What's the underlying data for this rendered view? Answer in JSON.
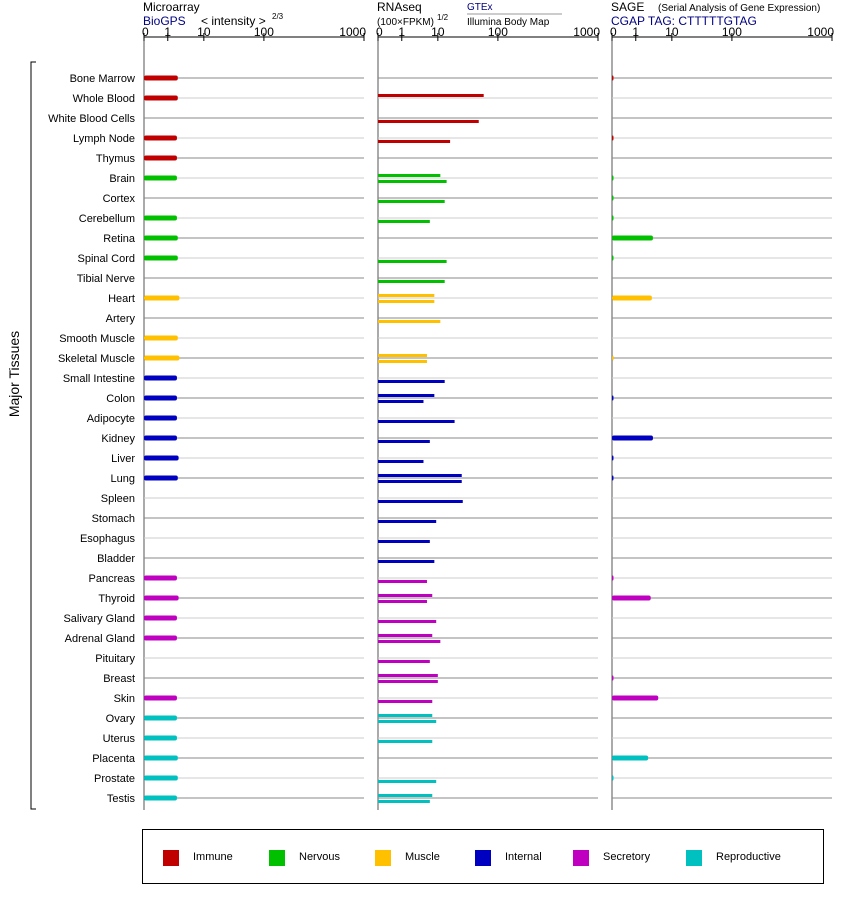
{
  "panels": {
    "microarray": {
      "title": "Microarray",
      "source": "BioGPS",
      "metric": "< intensity >",
      "exponent": "2/3",
      "ticks": [
        "0",
        "1",
        "10",
        "100",
        "1000"
      ]
    },
    "rnaseq": {
      "title": "RNAseq",
      "metric": "(100×FPKM)",
      "exponent": "1/2",
      "source_top": "GTEx",
      "source_bottom": "Illumina Body Map",
      "ticks": [
        "0",
        "1",
        "10",
        "100",
        "1000"
      ]
    },
    "sage": {
      "title": "SAGE",
      "subtitle": "(Serial Analysis of Gene Expression)",
      "tag": "CGAP TAG: CTTTTTGTAG",
      "ticks": [
        "0",
        "1",
        "10",
        "100",
        "1000"
      ]
    }
  },
  "y_axis_label": "Major Tissues",
  "colors": {
    "Immune": "#c00000",
    "Nervous": "#00c000",
    "Muscle": "#ffc000",
    "Internal": "#0000c0",
    "Secretory": "#c000c0",
    "Reproductive": "#00c0c0",
    "title_blue": "#000080"
  },
  "legend": [
    "Immune",
    "Nervous",
    "Muscle",
    "Internal",
    "Secretory",
    "Reproductive"
  ],
  "chart_data": [
    {
      "type": "bar",
      "title": "Microarray",
      "scale": "log-like (0, 1, 10, 100, 1000)",
      "xlim": [
        0,
        1000
      ],
      "categories": [
        "Bone Marrow",
        "Whole Blood",
        "White Blood Cells",
        "Lymph Node",
        "Thymus",
        "Brain",
        "Cortex",
        "Cerebellum",
        "Retina",
        "Spinal Cord",
        "Tibial Nerve",
        "Heart",
        "Artery",
        "Smooth Muscle",
        "Skeletal Muscle",
        "Small Intestine",
        "Colon",
        "Adipocyte",
        "Kidney",
        "Liver",
        "Lung",
        "Spleen",
        "Stomach",
        "Esophagus",
        "Bladder",
        "Pancreas",
        "Thyroid",
        "Salivary Gland",
        "Adrenal Gland",
        "Pituitary",
        "Breast",
        "Skin",
        "Ovary",
        "Uterus",
        "Placenta",
        "Prostate",
        "Testis"
      ],
      "groups": [
        "Immune",
        "Immune",
        "Immune",
        "Immune",
        "Immune",
        "Nervous",
        "Nervous",
        "Nervous",
        "Nervous",
        "Nervous",
        "Nervous",
        "Muscle",
        "Muscle",
        "Muscle",
        "Muscle",
        "Internal",
        "Internal",
        "Internal",
        "Internal",
        "Internal",
        "Internal",
        "Internal",
        "Internal",
        "Internal",
        "Internal",
        "Secretory",
        "Secretory",
        "Secretory",
        "Secretory",
        "Secretory",
        "Secretory",
        "Secretory",
        "Reproductive",
        "Reproductive",
        "Reproductive",
        "Reproductive",
        "Reproductive"
      ],
      "values": [
        1.9,
        1.9,
        null,
        1.8,
        1.8,
        1.8,
        null,
        1.8,
        1.9,
        1.9,
        null,
        2.1,
        null,
        1.9,
        2.1,
        1.8,
        1.8,
        1.8,
        1.8,
        2.0,
        1.9,
        null,
        null,
        null,
        null,
        1.8,
        2.0,
        1.8,
        1.8,
        null,
        null,
        1.8,
        1.8,
        1.8,
        1.9,
        1.9,
        1.8
      ]
    },
    {
      "type": "bar",
      "title": "RNAseq",
      "scale": "log-like (0, 1, 10, 100, 1000)",
      "xlim": [
        0,
        1000
      ],
      "categories": [
        "Bone Marrow",
        "Whole Blood",
        "White Blood Cells",
        "Lymph Node",
        "Thymus",
        "Brain",
        "Cortex",
        "Cerebellum",
        "Retina",
        "Spinal Cord",
        "Tibial Nerve",
        "Heart",
        "Artery",
        "Smooth Muscle",
        "Skeletal Muscle",
        "Small Intestine",
        "Colon",
        "Adipocyte",
        "Kidney",
        "Liver",
        "Lung",
        "Spleen",
        "Stomach",
        "Esophagus",
        "Bladder",
        "Pancreas",
        "Thyroid",
        "Salivary Gland",
        "Adrenal Gland",
        "Pituitary",
        "Breast",
        "Skin",
        "Ovary",
        "Uterus",
        "Placenta",
        "Prostate",
        "Testis"
      ],
      "groups": [
        "Immune",
        "Immune",
        "Immune",
        "Immune",
        "Immune",
        "Nervous",
        "Nervous",
        "Nervous",
        "Nervous",
        "Nervous",
        "Nervous",
        "Muscle",
        "Muscle",
        "Muscle",
        "Muscle",
        "Internal",
        "Internal",
        "Internal",
        "Internal",
        "Internal",
        "Internal",
        "Internal",
        "Internal",
        "Internal",
        "Internal",
        "Secretory",
        "Secretory",
        "Secretory",
        "Secretory",
        "Secretory",
        "Secretory",
        "Secretory",
        "Reproductive",
        "Reproductive",
        "Reproductive",
        "Reproductive",
        "Reproductive"
      ],
      "series": [
        {
          "name": "GTEx",
          "values": [
            null,
            58,
            null,
            null,
            null,
            11,
            null,
            null,
            null,
            null,
            null,
            8,
            null,
            null,
            5,
            null,
            8,
            null,
            null,
            null,
            25,
            null,
            null,
            null,
            null,
            null,
            7,
            null,
            7,
            null,
            10,
            null,
            7,
            null,
            null,
            null,
            7
          ]
        },
        {
          "name": "Illumina Body Map",
          "values": [
            null,
            null,
            48,
            16,
            null,
            14,
            13,
            6,
            null,
            14,
            13,
            8,
            11,
            null,
            5,
            13,
            4,
            19,
            6,
            4,
            25,
            26,
            9,
            6,
            8,
            5,
            5,
            9,
            11,
            6,
            10,
            7,
            9,
            7,
            null,
            9,
            6
          ]
        }
      ]
    },
    {
      "type": "bar",
      "title": "SAGE",
      "scale": "log-like (0, 1, 10, 100, 1000)",
      "xlim": [
        0,
        1000
      ],
      "categories": [
        "Bone Marrow",
        "Whole Blood",
        "White Blood Cells",
        "Lymph Node",
        "Thymus",
        "Brain",
        "Cortex",
        "Cerebellum",
        "Retina",
        "Spinal Cord",
        "Tibial Nerve",
        "Heart",
        "Artery",
        "Smooth Muscle",
        "Skeletal Muscle",
        "Small Intestine",
        "Colon",
        "Adipocyte",
        "Kidney",
        "Liver",
        "Lung",
        "Spleen",
        "Stomach",
        "Esophagus",
        "Bladder",
        "Pancreas",
        "Thyroid",
        "Salivary Gland",
        "Adrenal Gland",
        "Pituitary",
        "Breast",
        "Skin",
        "Ovary",
        "Uterus",
        "Placenta",
        "Prostate",
        "Testis"
      ],
      "groups": [
        "Immune",
        "Immune",
        "Immune",
        "Immune",
        "Immune",
        "Nervous",
        "Nervous",
        "Nervous",
        "Nervous",
        "Nervous",
        "Nervous",
        "Muscle",
        "Muscle",
        "Muscle",
        "Muscle",
        "Internal",
        "Internal",
        "Internal",
        "Internal",
        "Internal",
        "Internal",
        "Internal",
        "Internal",
        "Internal",
        "Internal",
        "Secretory",
        "Secretory",
        "Secretory",
        "Secretory",
        "Secretory",
        "Secretory",
        "Secretory",
        "Reproductive",
        "Reproductive",
        "Reproductive",
        "Reproductive",
        "Reproductive"
      ],
      "values": [
        0.05,
        null,
        null,
        0.05,
        null,
        0.05,
        0.05,
        0.05,
        3.0,
        0.05,
        null,
        2.8,
        null,
        null,
        0.05,
        null,
        0.05,
        null,
        3.0,
        0.05,
        0.05,
        null,
        null,
        null,
        null,
        0.05,
        2.6,
        null,
        null,
        null,
        0.05,
        4.2,
        null,
        null,
        2.2,
        0.05,
        null
      ]
    }
  ]
}
